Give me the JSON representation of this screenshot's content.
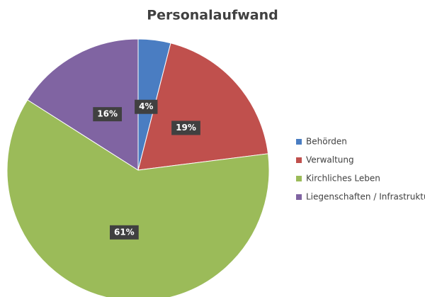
{
  "chart_data": {
    "type": "pie",
    "title": "Personalaufwand",
    "categories": [
      "Behörden",
      "Verwaltung",
      "Kirchliches Leben",
      "Liegenschaften / Infrastruktur"
    ],
    "values": [
      4,
      19,
      61,
      16
    ],
    "value_labels": [
      "4%",
      "19%",
      "61%",
      "16%"
    ],
    "colors": [
      "#4a7dc2",
      "#c0504d",
      "#9bbb59",
      "#8064a2"
    ],
    "legend": "right"
  }
}
